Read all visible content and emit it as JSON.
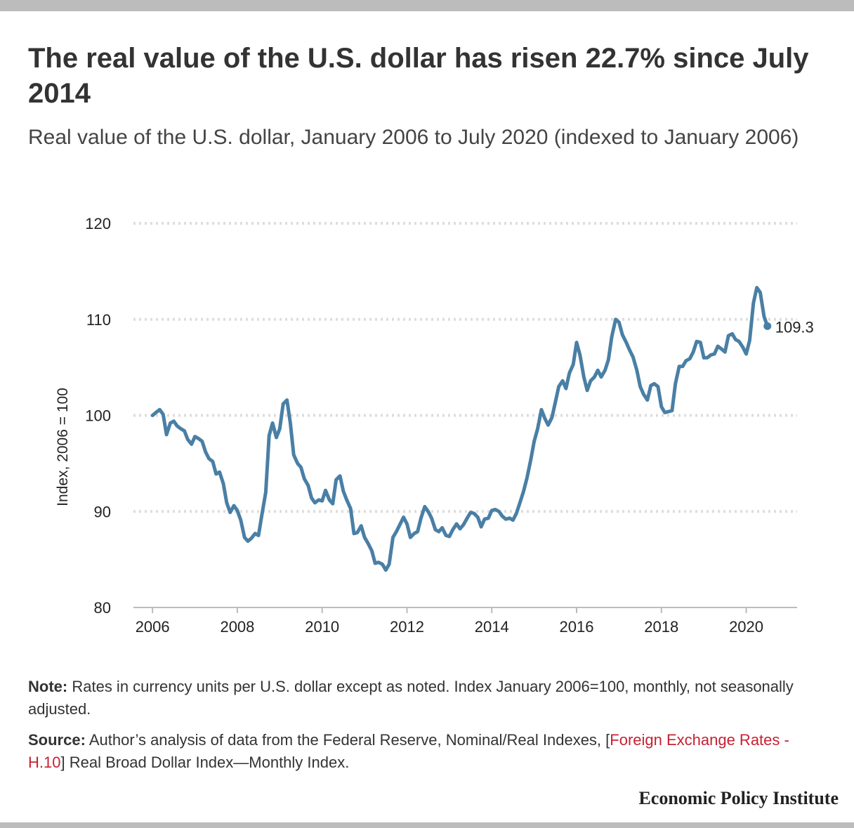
{
  "title": "The real value of the U.S. dollar has risen 22.7% since July 2014",
  "subtitle": "Real value of the U.S. dollar, January 2006 to July 2020 (indexed to January 2006)",
  "note": {
    "label": "Note:",
    "text": "Rates in currency units per U.S. dollar except as noted. Index January 2006=100, monthly, not seasonally adjusted."
  },
  "source": {
    "label": "Source:",
    "text_before": "Author’s analysis of data from the Federal Reserve, Nominal/Real Indexes, [",
    "link_text": "Foreign Exchange Rates - H.10",
    "text_after": "] Real Broad Dollar Index—Monthly Index."
  },
  "brand": "Economic Policy Institute",
  "colors": {
    "line": "#4a7fa5",
    "grid": "#dddddd",
    "axis": "#bbbbbb",
    "link": "#c52233"
  },
  "chart_data": {
    "type": "line",
    "title": "The real value of the U.S. dollar has risen 22.7% since July 2014",
    "xlabel": "",
    "ylabel": "Index, 2006 = 100",
    "xlim": [
      2005.55,
      2021.2
    ],
    "ylim": [
      80,
      120
    ],
    "x_ticks": [
      2006,
      2008,
      2010,
      2012,
      2014,
      2016,
      2018,
      2020
    ],
    "y_ticks": [
      80,
      90,
      100,
      110,
      120
    ],
    "grid": "horizontal dotted",
    "end_label": "109.3",
    "series": [
      {
        "name": "",
        "points": [
          [
            2006.0,
            100.0
          ],
          [
            2006.08,
            100.3
          ],
          [
            2006.17,
            100.6
          ],
          [
            2006.25,
            100.1
          ],
          [
            2006.33,
            98.0
          ],
          [
            2006.42,
            99.2
          ],
          [
            2006.5,
            99.4
          ],
          [
            2006.58,
            98.9
          ],
          [
            2006.67,
            98.6
          ],
          [
            2006.75,
            98.4
          ],
          [
            2006.83,
            97.5
          ],
          [
            2006.92,
            97.0
          ],
          [
            2007.0,
            97.8
          ],
          [
            2007.08,
            97.6
          ],
          [
            2007.17,
            97.3
          ],
          [
            2007.25,
            96.2
          ],
          [
            2007.33,
            95.5
          ],
          [
            2007.42,
            95.2
          ],
          [
            2007.5,
            93.9
          ],
          [
            2007.58,
            94.1
          ],
          [
            2007.67,
            92.9
          ],
          [
            2007.75,
            90.9
          ],
          [
            2007.83,
            89.9
          ],
          [
            2007.92,
            90.6
          ],
          [
            2008.0,
            90.1
          ],
          [
            2008.08,
            89.1
          ],
          [
            2008.17,
            87.3
          ],
          [
            2008.25,
            86.9
          ],
          [
            2008.33,
            87.2
          ],
          [
            2008.42,
            87.7
          ],
          [
            2008.5,
            87.5
          ],
          [
            2008.58,
            89.7
          ],
          [
            2008.67,
            92.0
          ],
          [
            2008.75,
            97.9
          ],
          [
            2008.83,
            99.2
          ],
          [
            2008.92,
            97.7
          ],
          [
            2009.0,
            98.6
          ],
          [
            2009.08,
            101.2
          ],
          [
            2009.17,
            101.6
          ],
          [
            2009.25,
            99.2
          ],
          [
            2009.33,
            95.9
          ],
          [
            2009.42,
            95.0
          ],
          [
            2009.5,
            94.6
          ],
          [
            2009.58,
            93.4
          ],
          [
            2009.67,
            92.7
          ],
          [
            2009.75,
            91.4
          ],
          [
            2009.83,
            90.9
          ],
          [
            2009.92,
            91.2
          ],
          [
            2010.0,
            91.1
          ],
          [
            2010.08,
            92.2
          ],
          [
            2010.17,
            91.2
          ],
          [
            2010.25,
            90.8
          ],
          [
            2010.33,
            93.3
          ],
          [
            2010.42,
            93.7
          ],
          [
            2010.5,
            92.1
          ],
          [
            2010.58,
            91.2
          ],
          [
            2010.67,
            90.3
          ],
          [
            2010.75,
            87.7
          ],
          [
            2010.83,
            87.8
          ],
          [
            2010.92,
            88.5
          ],
          [
            2011.0,
            87.3
          ],
          [
            2011.08,
            86.7
          ],
          [
            2011.17,
            85.9
          ],
          [
            2011.25,
            84.6
          ],
          [
            2011.33,
            84.7
          ],
          [
            2011.42,
            84.5
          ],
          [
            2011.5,
            83.9
          ],
          [
            2011.58,
            84.5
          ],
          [
            2011.67,
            87.3
          ],
          [
            2011.75,
            87.9
          ],
          [
            2011.83,
            88.6
          ],
          [
            2011.92,
            89.4
          ],
          [
            2012.0,
            88.7
          ],
          [
            2012.08,
            87.3
          ],
          [
            2012.17,
            87.7
          ],
          [
            2012.25,
            87.9
          ],
          [
            2012.33,
            89.3
          ],
          [
            2012.42,
            90.5
          ],
          [
            2012.5,
            90.0
          ],
          [
            2012.58,
            89.3
          ],
          [
            2012.67,
            88.1
          ],
          [
            2012.75,
            87.9
          ],
          [
            2012.83,
            88.3
          ],
          [
            2012.92,
            87.5
          ],
          [
            2013.0,
            87.4
          ],
          [
            2013.08,
            88.1
          ],
          [
            2013.17,
            88.7
          ],
          [
            2013.25,
            88.2
          ],
          [
            2013.33,
            88.6
          ],
          [
            2013.42,
            89.3
          ],
          [
            2013.5,
            89.9
          ],
          [
            2013.58,
            89.8
          ],
          [
            2013.67,
            89.4
          ],
          [
            2013.75,
            88.4
          ],
          [
            2013.83,
            89.2
          ],
          [
            2013.92,
            89.3
          ],
          [
            2014.0,
            90.1
          ],
          [
            2014.08,
            90.2
          ],
          [
            2014.17,
            90.0
          ],
          [
            2014.25,
            89.5
          ],
          [
            2014.33,
            89.2
          ],
          [
            2014.42,
            89.3
          ],
          [
            2014.5,
            89.1
          ],
          [
            2014.58,
            89.8
          ],
          [
            2014.67,
            91.0
          ],
          [
            2014.75,
            92.1
          ],
          [
            2014.83,
            93.5
          ],
          [
            2014.92,
            95.4
          ],
          [
            2015.0,
            97.3
          ],
          [
            2015.08,
            98.6
          ],
          [
            2015.17,
            100.6
          ],
          [
            2015.25,
            99.7
          ],
          [
            2015.33,
            99.0
          ],
          [
            2015.42,
            99.8
          ],
          [
            2015.5,
            101.4
          ],
          [
            2015.58,
            103.0
          ],
          [
            2015.67,
            103.6
          ],
          [
            2015.75,
            102.8
          ],
          [
            2015.83,
            104.4
          ],
          [
            2015.92,
            105.3
          ],
          [
            2016.0,
            107.6
          ],
          [
            2016.08,
            106.3
          ],
          [
            2016.17,
            104.0
          ],
          [
            2016.25,
            102.6
          ],
          [
            2016.33,
            103.6
          ],
          [
            2016.42,
            104.0
          ],
          [
            2016.5,
            104.7
          ],
          [
            2016.58,
            104.0
          ],
          [
            2016.67,
            104.7
          ],
          [
            2016.75,
            105.8
          ],
          [
            2016.83,
            108.2
          ],
          [
            2016.92,
            110.0
          ],
          [
            2017.0,
            109.7
          ],
          [
            2017.08,
            108.4
          ],
          [
            2017.17,
            107.6
          ],
          [
            2017.25,
            106.8
          ],
          [
            2017.33,
            106.1
          ],
          [
            2017.42,
            104.7
          ],
          [
            2017.5,
            103.0
          ],
          [
            2017.58,
            102.2
          ],
          [
            2017.67,
            101.6
          ],
          [
            2017.75,
            103.1
          ],
          [
            2017.83,
            103.3
          ],
          [
            2017.92,
            103.0
          ],
          [
            2018.0,
            100.9
          ],
          [
            2018.08,
            100.3
          ],
          [
            2018.17,
            100.4
          ],
          [
            2018.25,
            100.5
          ],
          [
            2018.33,
            103.3
          ],
          [
            2018.42,
            105.1
          ],
          [
            2018.5,
            105.1
          ],
          [
            2018.58,
            105.7
          ],
          [
            2018.67,
            105.9
          ],
          [
            2018.75,
            106.6
          ],
          [
            2018.83,
            107.7
          ],
          [
            2018.92,
            107.6
          ],
          [
            2019.0,
            106.0
          ],
          [
            2019.08,
            106.0
          ],
          [
            2019.17,
            106.3
          ],
          [
            2019.25,
            106.4
          ],
          [
            2019.33,
            107.2
          ],
          [
            2019.42,
            106.9
          ],
          [
            2019.5,
            106.6
          ],
          [
            2019.58,
            108.3
          ],
          [
            2019.67,
            108.5
          ],
          [
            2019.75,
            107.9
          ],
          [
            2019.83,
            107.7
          ],
          [
            2019.92,
            107.1
          ],
          [
            2020.0,
            106.4
          ],
          [
            2020.08,
            107.8
          ],
          [
            2020.17,
            111.7
          ],
          [
            2020.25,
            113.3
          ],
          [
            2020.33,
            112.8
          ],
          [
            2020.42,
            110.3
          ],
          [
            2020.5,
            109.3
          ]
        ]
      }
    ]
  }
}
